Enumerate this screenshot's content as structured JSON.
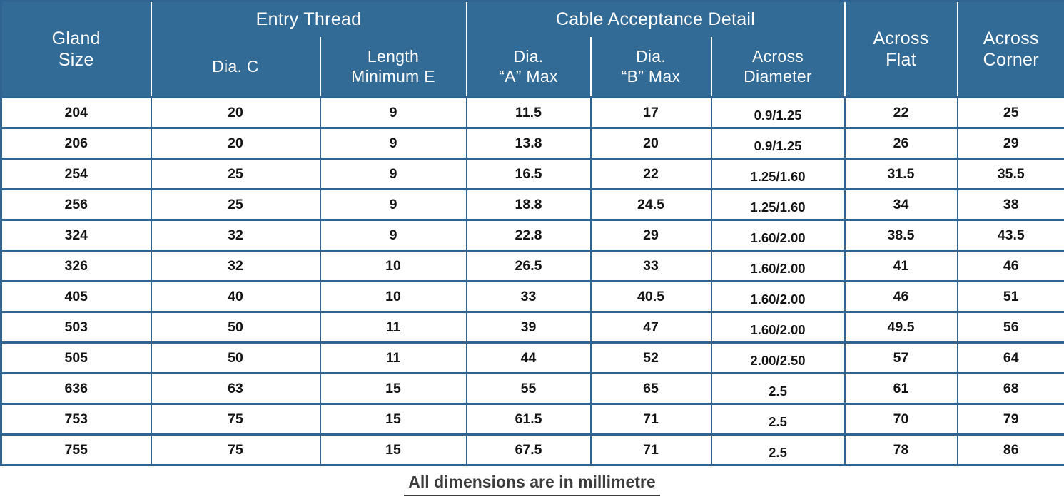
{
  "colors": {
    "header_bg": "#336b97",
    "border": "#2f6391",
    "cell_text": "#141414",
    "header_text": "#ffffff",
    "note_text": "#3c3c3c"
  },
  "table": {
    "headers": {
      "gland_size": "Gland\nSize",
      "entry_thread": "Entry Thread",
      "dia_c": "Dia. C",
      "length_minimum_e": "Length\nMinimum E",
      "cable_acceptance_detail": "Cable Acceptance Detail",
      "dia_a_max": "Dia.\n“A” Max",
      "dia_b_max": "Dia.\n“B” Max",
      "across_diameter": "Across\nDiameter",
      "across_flat": "Across\nFlat",
      "across_corner": "Across\nCorner"
    },
    "columns": [
      "Gland Size",
      "Dia. C",
      "Length Minimum E",
      "Dia. “A” Max",
      "Dia. “B” Max",
      "Across Diameter",
      "Across Flat",
      "Across Corner"
    ],
    "rows": [
      [
        "204",
        "20",
        "9",
        "11.5",
        "17",
        "0.9/1.25",
        "22",
        "25"
      ],
      [
        "206",
        "20",
        "9",
        "13.8",
        "20",
        "0.9/1.25",
        "26",
        "29"
      ],
      [
        "254",
        "25",
        "9",
        "16.5",
        "22",
        "1.25/1.60",
        "31.5",
        "35.5"
      ],
      [
        "256",
        "25",
        "9",
        "18.8",
        "24.5",
        "1.25/1.60",
        "34",
        "38"
      ],
      [
        "324",
        "32",
        "9",
        "22.8",
        "29",
        "1.60/2.00",
        "38.5",
        "43.5"
      ],
      [
        "326",
        "32",
        "10",
        "26.5",
        "33",
        "1.60/2.00",
        "41",
        "46"
      ],
      [
        "405",
        "40",
        "10",
        "33",
        "40.5",
        "1.60/2.00",
        "46",
        "51"
      ],
      [
        "503",
        "50",
        "11",
        "39",
        "47",
        "1.60/2.00",
        "49.5",
        "56"
      ],
      [
        "505",
        "50",
        "11",
        "44",
        "52",
        "2.00/2.50",
        "57",
        "64"
      ],
      [
        "636",
        "63",
        "15",
        "55",
        "65",
        "2.5",
        "61",
        "68"
      ],
      [
        "753",
        "75",
        "15",
        "61.5",
        "71",
        "2.5",
        "70",
        "79"
      ],
      [
        "755",
        "75",
        "15",
        "67.5",
        "71",
        "2.5",
        "78",
        "86"
      ]
    ]
  },
  "footer_note": "All dimensions are in millimetre"
}
